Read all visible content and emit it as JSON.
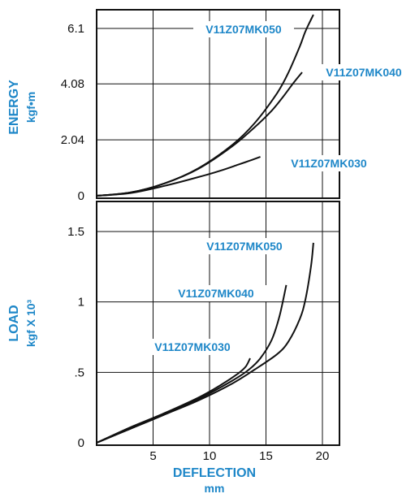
{
  "colors": {
    "accent": "#1e87c8",
    "curve": "#111111",
    "grid": "#111111"
  },
  "chart_data": [
    {
      "type": "line",
      "panel": "energy",
      "ylabel": "ENERGY",
      "yunit": "kgf•m",
      "ylim": [
        0,
        7.0
      ],
      "xlim": [
        0,
        22
      ],
      "yticks": [
        0,
        2.04,
        4.08,
        6.1
      ],
      "ytick_labels": [
        "0",
        "2.04",
        "4.08",
        "6.1"
      ],
      "grid": true,
      "series": [
        {
          "name": "V11Z07MK050",
          "x": [
            0,
            3,
            6,
            9,
            12,
            14,
            16,
            17,
            18,
            18.5,
            19.2
          ],
          "y": [
            0,
            0.12,
            0.45,
            1.0,
            1.85,
            2.65,
            3.75,
            4.5,
            5.45,
            6.0,
            6.6
          ]
        },
        {
          "name": "V11Z07MK040",
          "x": [
            0,
            3,
            6,
            9,
            12,
            14,
            15.5,
            16.5,
            17.5,
            18.2
          ],
          "y": [
            0,
            0.12,
            0.45,
            0.98,
            1.8,
            2.5,
            3.1,
            3.6,
            4.15,
            4.5
          ]
        },
        {
          "name": "V11Z07MK030",
          "x": [
            0,
            3,
            6,
            9,
            11,
            12.5,
            13.5,
            14.5
          ],
          "y": [
            0,
            0.1,
            0.36,
            0.68,
            0.92,
            1.13,
            1.27,
            1.42
          ]
        }
      ]
    },
    {
      "type": "line",
      "panel": "load",
      "ylabel": "LOAD",
      "yunit": "kgf X 10³",
      "xlabel": "DEFLECTION",
      "xunit": "mm",
      "ylim": [
        0,
        1.85
      ],
      "xlim": [
        0,
        22
      ],
      "xticks": [
        5,
        10,
        15,
        20
      ],
      "xtick_labels": [
        "5",
        "10",
        "15",
        "20"
      ],
      "yticks": [
        0,
        0.5,
        1,
        1.5
      ],
      "ytick_labels": [
        "0",
        ".5",
        "1",
        "1.5"
      ],
      "grid": true,
      "series": [
        {
          "name": "V11Z07MK050",
          "x": [
            0,
            3,
            6,
            9,
            12,
            14,
            16,
            17,
            18,
            18.5,
            19,
            19.2
          ],
          "y": [
            0,
            0.1,
            0.2,
            0.3,
            0.42,
            0.52,
            0.63,
            0.72,
            0.88,
            1.02,
            1.26,
            1.42
          ]
        },
        {
          "name": "V11Z07MK040",
          "x": [
            0,
            3,
            6,
            9,
            12,
            13.5,
            14.5,
            15.5,
            16.2,
            16.8
          ],
          "y": [
            0,
            0.1,
            0.2,
            0.31,
            0.44,
            0.52,
            0.6,
            0.73,
            0.9,
            1.12
          ]
        },
        {
          "name": "V11Z07MK030",
          "x": [
            0,
            3,
            6,
            9,
            11,
            12.5,
            13.2,
            13.6
          ],
          "y": [
            0,
            0.11,
            0.21,
            0.32,
            0.41,
            0.49,
            0.54,
            0.6
          ]
        }
      ]
    }
  ]
}
